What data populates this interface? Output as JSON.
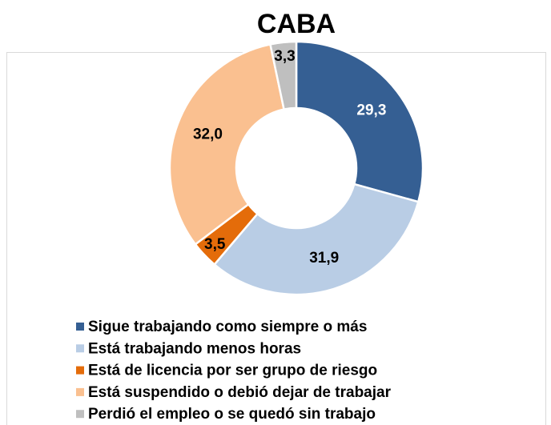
{
  "chart_data": {
    "type": "donut",
    "title": "CABA",
    "categories": [
      "Sigue trabajando como siempre o más",
      "Está trabajando menos horas",
      "Está de licencia por ser grupo de riesgo",
      "Está suspendido o debió dejar de trabajar",
      "Perdió el empleo o se quedó sin trabajo"
    ],
    "values": [
      29.3,
      31.9,
      3.5,
      32.0,
      3.3
    ],
    "value_labels": [
      "29,3",
      "31,9",
      "3,5",
      "32,0",
      "3,3"
    ],
    "colors": [
      "#355f93",
      "#b9cde5",
      "#e46c0a",
      "#fac090",
      "#bfbfbf"
    ],
    "legend": "bottom"
  }
}
